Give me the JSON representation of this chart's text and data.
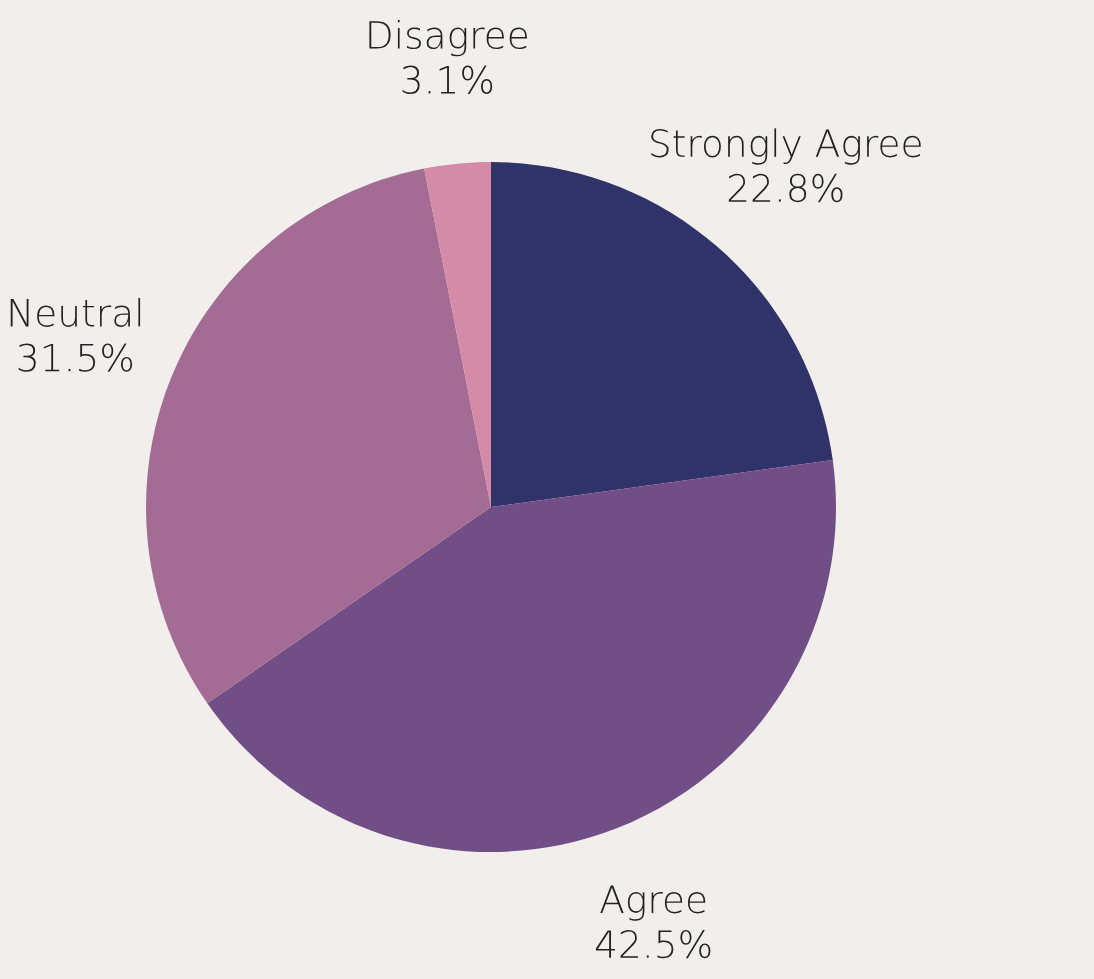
{
  "chart_data": {
    "type": "pie",
    "categories": [
      "Strongly Agree",
      "Agree",
      "Neutral",
      "Disagree"
    ],
    "values": [
      22.8,
      42.5,
      31.5,
      3.1
    ],
    "colors": [
      "#2f3369",
      "#724e86",
      "#a46c94",
      "#d48ba8"
    ],
    "value_labels": [
      "22.8%",
      "42.5%",
      "31.5%",
      "3.1%"
    ]
  }
}
